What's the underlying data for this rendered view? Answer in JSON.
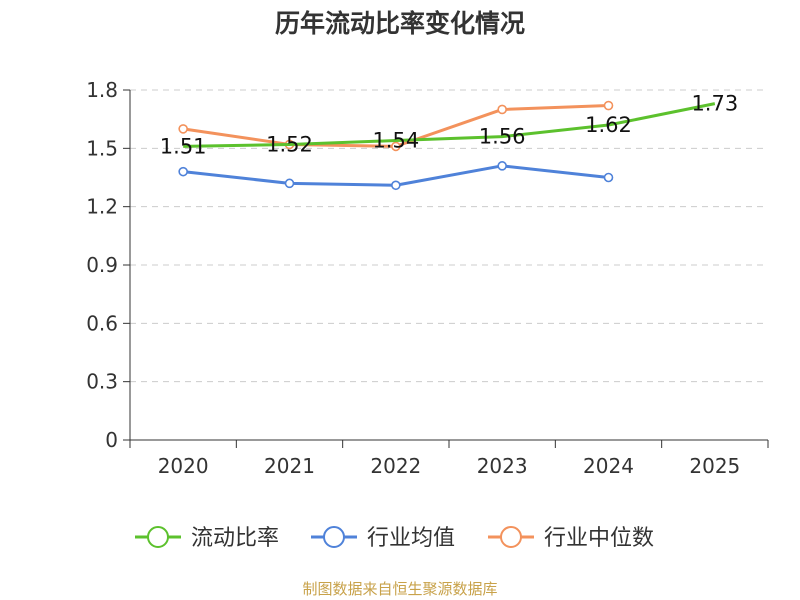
{
  "chart_data": {
    "type": "line",
    "title": "历年流动比率变化情况",
    "categories": [
      "2020",
      "2021",
      "2022",
      "2023",
      "2024",
      "2025"
    ],
    "ylim": [
      0,
      1.8
    ],
    "yticks": [
      "0",
      "0.3",
      "0.6",
      "0.9",
      "1.2",
      "1.5",
      "1.8"
    ],
    "grid": true,
    "legend_position": "bottom",
    "series": [
      {
        "name": "流动比率",
        "color": "#5cc12d",
        "values": [
          1.51,
          1.52,
          1.54,
          1.56,
          1.62,
          1.73
        ],
        "labels": [
          "1.51",
          "1.52",
          "1.54",
          "1.56",
          "1.62",
          "1.73"
        ]
      },
      {
        "name": "行业均值",
        "color": "#4f82d9",
        "values": [
          1.38,
          1.32,
          1.31,
          1.41,
          1.35,
          null
        ]
      },
      {
        "name": "行业中位数",
        "color": "#f3925c",
        "values": [
          1.6,
          1.52,
          1.51,
          1.7,
          1.72,
          null
        ]
      }
    ]
  },
  "source": {
    "text": "制图数据来自恒生聚源数据库",
    "color": "#c8a24a"
  }
}
